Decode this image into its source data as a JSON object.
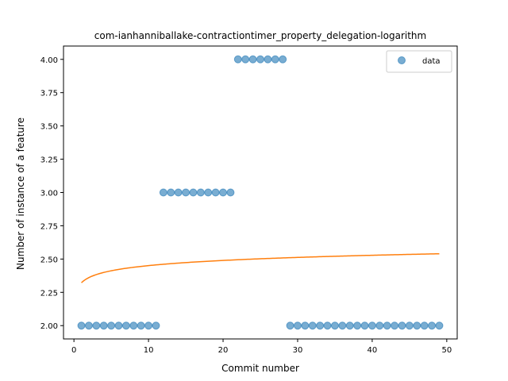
{
  "chart_data": {
    "type": "scatter",
    "title": "com-ianhanniballake-contractiontimer_property_delegation-logarithm",
    "xlabel": "Commit number",
    "ylabel": "Number of instance of a feature",
    "xlim": [
      -1.4,
      51.4
    ],
    "ylim": [
      1.9,
      4.1
    ],
    "xticks": [
      0,
      10,
      20,
      30,
      40,
      50
    ],
    "xtick_labels": [
      "0",
      "10",
      "20",
      "30",
      "40",
      "50"
    ],
    "yticks": [
      2.0,
      2.25,
      2.5,
      2.75,
      3.0,
      3.25,
      3.5,
      3.75,
      4.0
    ],
    "ytick_labels": [
      "2.00",
      "2.25",
      "2.50",
      "2.75",
      "3.00",
      "3.25",
      "3.50",
      "3.75",
      "4.00"
    ],
    "grid": false,
    "legend": {
      "position": "top-right",
      "entries": [
        "data"
      ]
    },
    "series": [
      {
        "name": "data",
        "kind": "scatter",
        "color": "#1f77b4",
        "x": [
          1,
          2,
          3,
          4,
          5,
          6,
          7,
          8,
          9,
          10,
          11,
          12,
          13,
          14,
          15,
          16,
          17,
          18,
          19,
          20,
          21,
          22,
          23,
          24,
          25,
          26,
          27,
          28,
          29,
          30,
          31,
          32,
          33,
          34,
          35,
          36,
          37,
          38,
          39,
          40,
          41,
          42,
          43,
          44,
          45,
          46,
          47,
          48,
          49
        ],
        "y": [
          2,
          2,
          2,
          2,
          2,
          2,
          2,
          2,
          2,
          2,
          2,
          3,
          3,
          3,
          3,
          3,
          3,
          3,
          3,
          3,
          3,
          4,
          4,
          4,
          4,
          4,
          4,
          4,
          2,
          2,
          2,
          2,
          2,
          2,
          2,
          2,
          2,
          2,
          2,
          2,
          2,
          2,
          2,
          2,
          2,
          2,
          2,
          2,
          2
        ]
      },
      {
        "kind": "line",
        "color": "#ff7f0e",
        "fit": {
          "form": "a + b*ln(x)",
          "a": 2.3218,
          "b": 0.056,
          "x_start": 1,
          "x_end": 49
        }
      }
    ]
  }
}
